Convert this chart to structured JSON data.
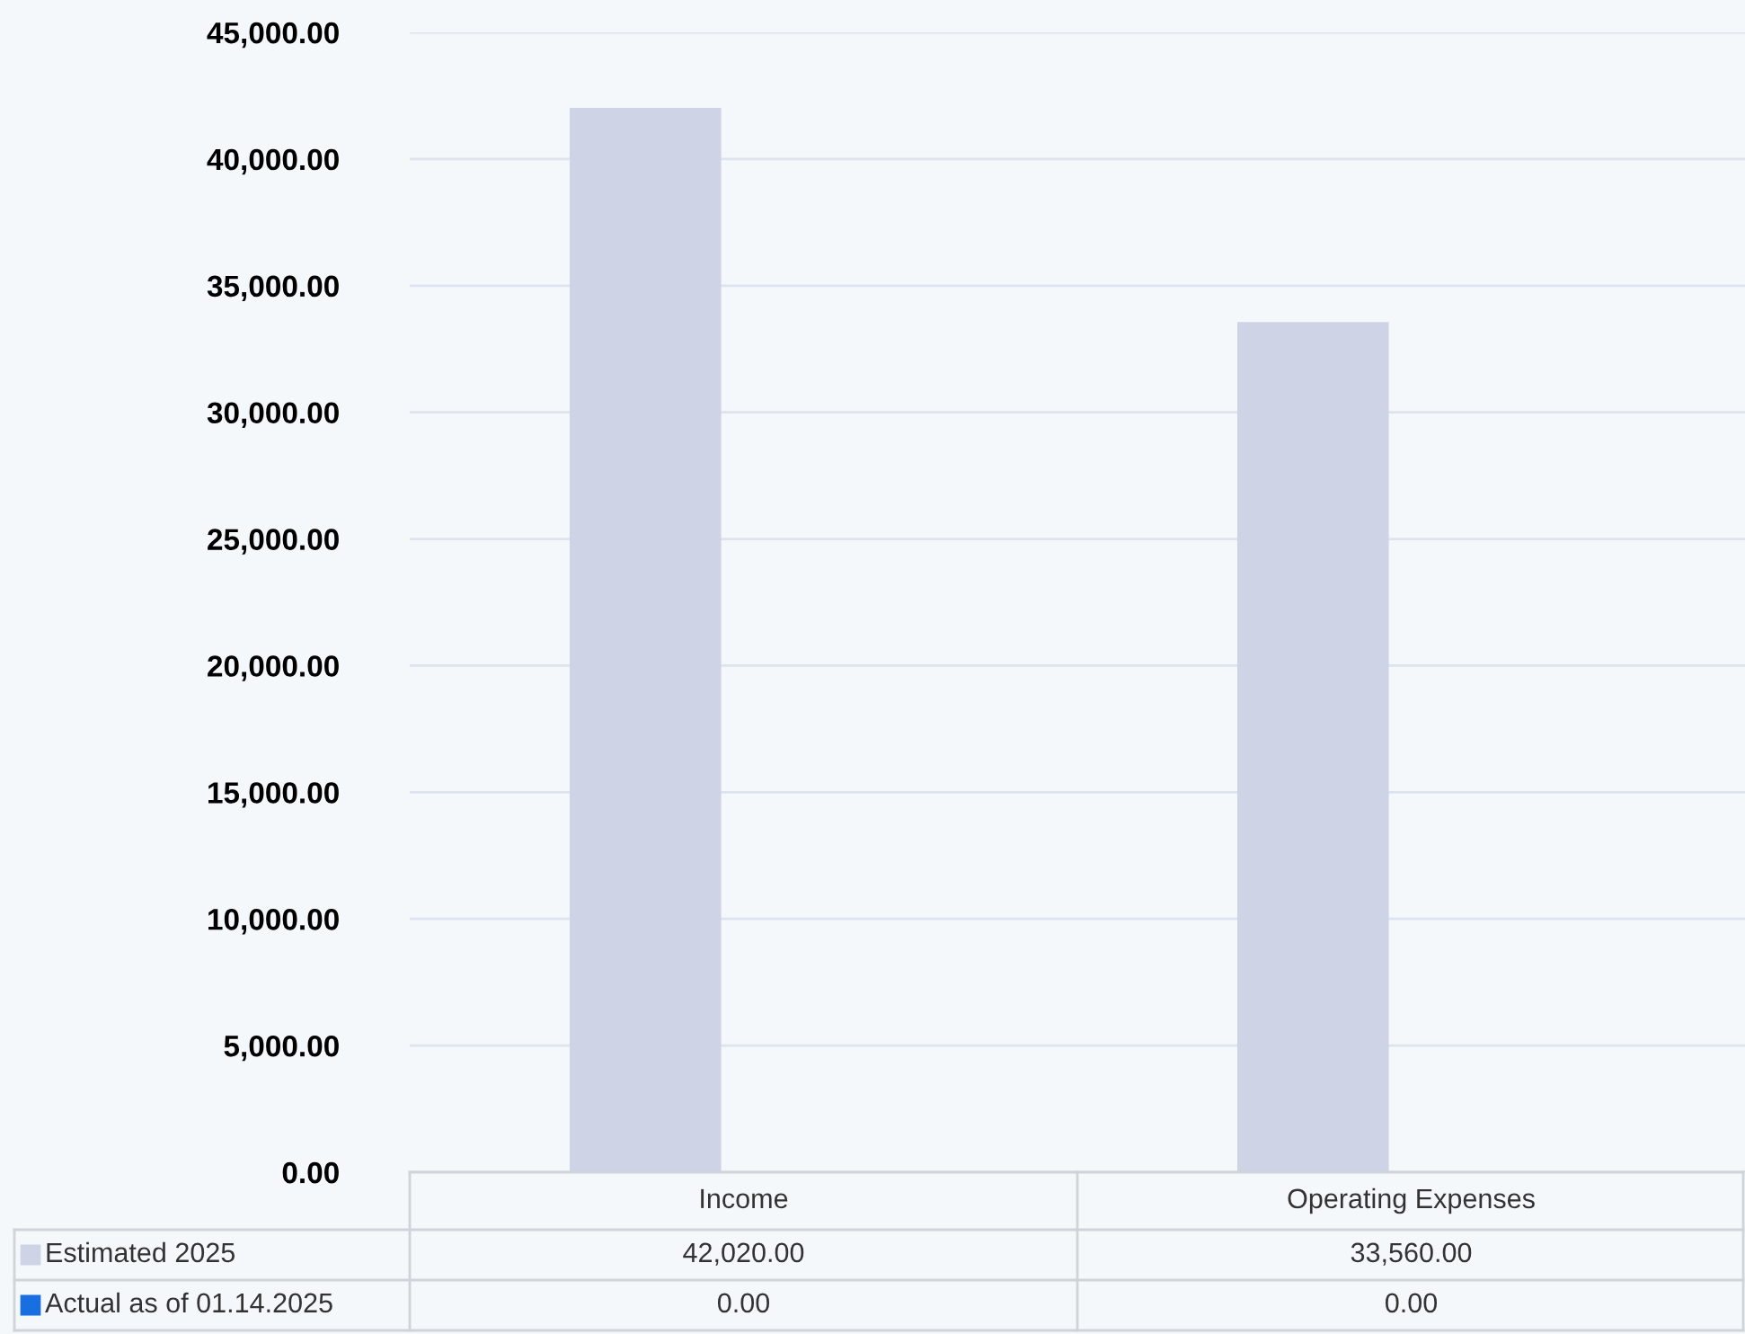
{
  "chart_data": {
    "type": "bar",
    "categories": [
      "Income",
      "Operating Expenses"
    ],
    "series": [
      {
        "name": "Estimated 2025",
        "color": "#cfd3e6",
        "values": [
          42020.0,
          33560.0
        ],
        "value_labels": [
          "42,020.00",
          "33,560.00"
        ]
      },
      {
        "name": "Actual as of 01.14.2025",
        "color": "#1a6fe0",
        "values": [
          0.0,
          0.0
        ],
        "value_labels": [
          "0.00",
          "0.00"
        ]
      }
    ],
    "ylim": [
      0,
      45000
    ],
    "yticks": [
      {
        "value": 0,
        "label": "0.00"
      },
      {
        "value": 5000,
        "label": "5,000.00"
      },
      {
        "value": 10000,
        "label": "10,000.00"
      },
      {
        "value": 15000,
        "label": "15,000.00"
      },
      {
        "value": 20000,
        "label": "20,000.00"
      },
      {
        "value": 25000,
        "label": "25,000.00"
      },
      {
        "value": 30000,
        "label": "30,000.00"
      },
      {
        "value": 35000,
        "label": "35,000.00"
      },
      {
        "value": 40000,
        "label": "40,000.00"
      },
      {
        "value": 45000,
        "label": "45,000.00"
      }
    ],
    "grid": "y"
  }
}
